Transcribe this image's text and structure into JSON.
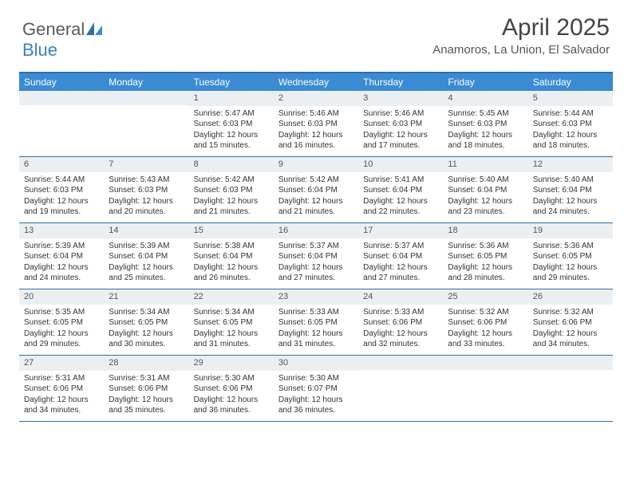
{
  "brand": {
    "part1": "General",
    "part2": "Blue"
  },
  "title": "April 2025",
  "location": "Anamoros, La Union, El Salvador",
  "colors": {
    "header_bg": "#3b8bd4",
    "border": "#2f6fa8",
    "daynum_bg": "#eceff1",
    "text": "#333333",
    "brand_gray": "#5a5a5a",
    "brand_blue": "#3b7fc4"
  },
  "daysOfWeek": [
    "Sunday",
    "Monday",
    "Tuesday",
    "Wednesday",
    "Thursday",
    "Friday",
    "Saturday"
  ],
  "weeks": [
    [
      {
        "n": "",
        "sr": "",
        "ss": "",
        "dl": ""
      },
      {
        "n": "",
        "sr": "",
        "ss": "",
        "dl": ""
      },
      {
        "n": "1",
        "sr": "Sunrise: 5:47 AM",
        "ss": "Sunset: 6:03 PM",
        "dl": "Daylight: 12 hours and 15 minutes."
      },
      {
        "n": "2",
        "sr": "Sunrise: 5:46 AM",
        "ss": "Sunset: 6:03 PM",
        "dl": "Daylight: 12 hours and 16 minutes."
      },
      {
        "n": "3",
        "sr": "Sunrise: 5:46 AM",
        "ss": "Sunset: 6:03 PM",
        "dl": "Daylight: 12 hours and 17 minutes."
      },
      {
        "n": "4",
        "sr": "Sunrise: 5:45 AM",
        "ss": "Sunset: 6:03 PM",
        "dl": "Daylight: 12 hours and 18 minutes."
      },
      {
        "n": "5",
        "sr": "Sunrise: 5:44 AM",
        "ss": "Sunset: 6:03 PM",
        "dl": "Daylight: 12 hours and 18 minutes."
      }
    ],
    [
      {
        "n": "6",
        "sr": "Sunrise: 5:44 AM",
        "ss": "Sunset: 6:03 PM",
        "dl": "Daylight: 12 hours and 19 minutes."
      },
      {
        "n": "7",
        "sr": "Sunrise: 5:43 AM",
        "ss": "Sunset: 6:03 PM",
        "dl": "Daylight: 12 hours and 20 minutes."
      },
      {
        "n": "8",
        "sr": "Sunrise: 5:42 AM",
        "ss": "Sunset: 6:03 PM",
        "dl": "Daylight: 12 hours and 21 minutes."
      },
      {
        "n": "9",
        "sr": "Sunrise: 5:42 AM",
        "ss": "Sunset: 6:04 PM",
        "dl": "Daylight: 12 hours and 21 minutes."
      },
      {
        "n": "10",
        "sr": "Sunrise: 5:41 AM",
        "ss": "Sunset: 6:04 PM",
        "dl": "Daylight: 12 hours and 22 minutes."
      },
      {
        "n": "11",
        "sr": "Sunrise: 5:40 AM",
        "ss": "Sunset: 6:04 PM",
        "dl": "Daylight: 12 hours and 23 minutes."
      },
      {
        "n": "12",
        "sr": "Sunrise: 5:40 AM",
        "ss": "Sunset: 6:04 PM",
        "dl": "Daylight: 12 hours and 24 minutes."
      }
    ],
    [
      {
        "n": "13",
        "sr": "Sunrise: 5:39 AM",
        "ss": "Sunset: 6:04 PM",
        "dl": "Daylight: 12 hours and 24 minutes."
      },
      {
        "n": "14",
        "sr": "Sunrise: 5:39 AM",
        "ss": "Sunset: 6:04 PM",
        "dl": "Daylight: 12 hours and 25 minutes."
      },
      {
        "n": "15",
        "sr": "Sunrise: 5:38 AM",
        "ss": "Sunset: 6:04 PM",
        "dl": "Daylight: 12 hours and 26 minutes."
      },
      {
        "n": "16",
        "sr": "Sunrise: 5:37 AM",
        "ss": "Sunset: 6:04 PM",
        "dl": "Daylight: 12 hours and 27 minutes."
      },
      {
        "n": "17",
        "sr": "Sunrise: 5:37 AM",
        "ss": "Sunset: 6:04 PM",
        "dl": "Daylight: 12 hours and 27 minutes."
      },
      {
        "n": "18",
        "sr": "Sunrise: 5:36 AM",
        "ss": "Sunset: 6:05 PM",
        "dl": "Daylight: 12 hours and 28 minutes."
      },
      {
        "n": "19",
        "sr": "Sunrise: 5:36 AM",
        "ss": "Sunset: 6:05 PM",
        "dl": "Daylight: 12 hours and 29 minutes."
      }
    ],
    [
      {
        "n": "20",
        "sr": "Sunrise: 5:35 AM",
        "ss": "Sunset: 6:05 PM",
        "dl": "Daylight: 12 hours and 29 minutes."
      },
      {
        "n": "21",
        "sr": "Sunrise: 5:34 AM",
        "ss": "Sunset: 6:05 PM",
        "dl": "Daylight: 12 hours and 30 minutes."
      },
      {
        "n": "22",
        "sr": "Sunrise: 5:34 AM",
        "ss": "Sunset: 6:05 PM",
        "dl": "Daylight: 12 hours and 31 minutes."
      },
      {
        "n": "23",
        "sr": "Sunrise: 5:33 AM",
        "ss": "Sunset: 6:05 PM",
        "dl": "Daylight: 12 hours and 31 minutes."
      },
      {
        "n": "24",
        "sr": "Sunrise: 5:33 AM",
        "ss": "Sunset: 6:06 PM",
        "dl": "Daylight: 12 hours and 32 minutes."
      },
      {
        "n": "25",
        "sr": "Sunrise: 5:32 AM",
        "ss": "Sunset: 6:06 PM",
        "dl": "Daylight: 12 hours and 33 minutes."
      },
      {
        "n": "26",
        "sr": "Sunrise: 5:32 AM",
        "ss": "Sunset: 6:06 PM",
        "dl": "Daylight: 12 hours and 34 minutes."
      }
    ],
    [
      {
        "n": "27",
        "sr": "Sunrise: 5:31 AM",
        "ss": "Sunset: 6:06 PM",
        "dl": "Daylight: 12 hours and 34 minutes."
      },
      {
        "n": "28",
        "sr": "Sunrise: 5:31 AM",
        "ss": "Sunset: 6:06 PM",
        "dl": "Daylight: 12 hours and 35 minutes."
      },
      {
        "n": "29",
        "sr": "Sunrise: 5:30 AM",
        "ss": "Sunset: 6:06 PM",
        "dl": "Daylight: 12 hours and 36 minutes."
      },
      {
        "n": "30",
        "sr": "Sunrise: 5:30 AM",
        "ss": "Sunset: 6:07 PM",
        "dl": "Daylight: 12 hours and 36 minutes."
      },
      {
        "n": "",
        "sr": "",
        "ss": "",
        "dl": ""
      },
      {
        "n": "",
        "sr": "",
        "ss": "",
        "dl": ""
      },
      {
        "n": "",
        "sr": "",
        "ss": "",
        "dl": ""
      }
    ]
  ]
}
